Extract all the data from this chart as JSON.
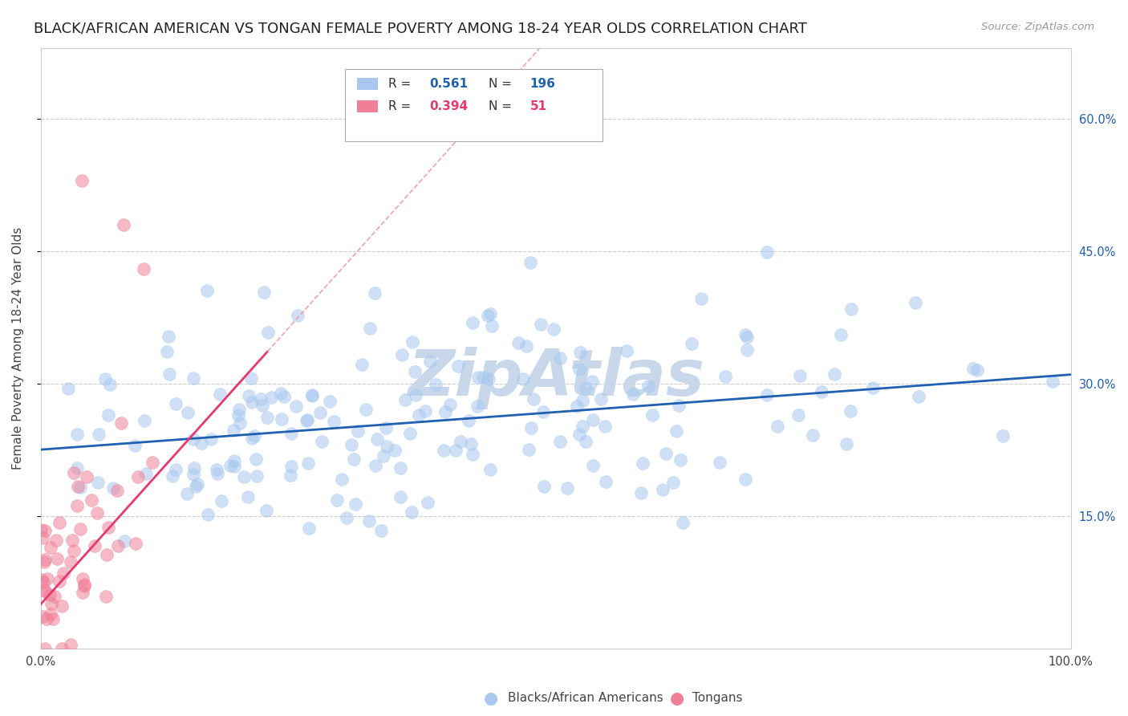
{
  "title": "BLACK/AFRICAN AMERICAN VS TONGAN FEMALE POVERTY AMONG 18-24 YEAR OLDS CORRELATION CHART",
  "source": "Source: ZipAtlas.com",
  "ylabel_label": "Female Poverty Among 18-24 Year Olds",
  "y_tick_positions": [
    0.15,
    0.3,
    0.45,
    0.6
  ],
  "y_tick_labels": [
    "15.0%",
    "30.0%",
    "45.0%",
    "60.0%"
  ],
  "x_min": 0.0,
  "x_max": 1.0,
  "y_min": 0.0,
  "y_max": 0.68,
  "blue_R": 0.561,
  "blue_N": 196,
  "pink_R": 0.394,
  "pink_N": 51,
  "blue_color": "#a8c8ef",
  "pink_color": "#f08098",
  "blue_line_color": "#2060b0",
  "pink_line_color": "#e83870",
  "pink_dash_color": "#f0a0b8",
  "background_color": "#ffffff",
  "grid_color": "#cccccc",
  "watermark_text": "ZipAtlas",
  "watermark_color": "#c8d8ea",
  "legend_label_blue": "Blacks/African Americans",
  "legend_label_pink": "Tongans",
  "title_fontsize": 13,
  "axis_label_fontsize": 11,
  "tick_fontsize": 10.5,
  "legend_fontsize": 11,
  "blue_trend_intercept": 0.225,
  "blue_trend_slope": 0.085,
  "pink_trend_intercept": 0.05,
  "pink_trend_slope": 1.3,
  "pink_line_x_end": 0.22
}
